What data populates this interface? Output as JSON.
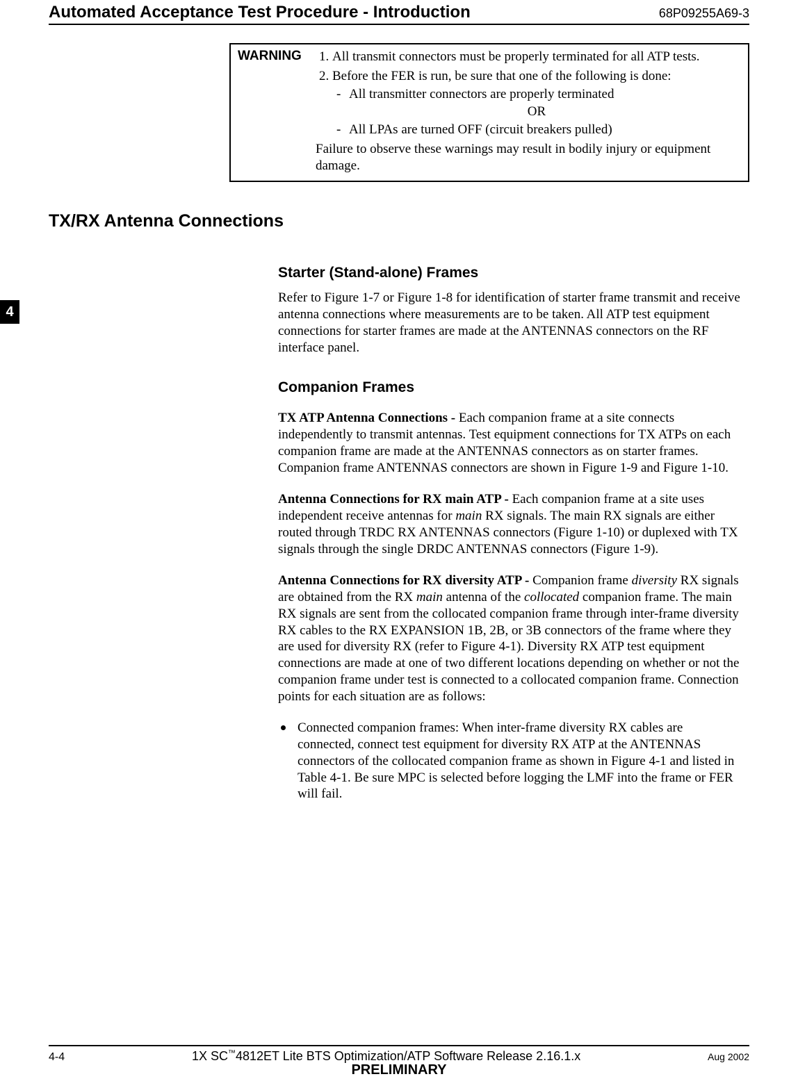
{
  "header": {
    "title": "Automated Acceptance Test Procedure - Introduction",
    "docnum": "68P09255A69-3"
  },
  "side_tab": "4",
  "warning": {
    "label": "WARNING",
    "item1": "All transmit connectors must be properly terminated for all ATP tests.",
    "item2": "Before the FER is run, be sure that one of the following is done:",
    "sub1": "All transmitter connectors are properly terminated",
    "or": "OR",
    "sub2": "All LPAs are turned OFF (circuit breakers pulled)",
    "footer": "Failure to observe these warnings may result in bodily injury or equipment damage."
  },
  "section1": {
    "heading": "TX/RX Antenna Connections"
  },
  "starter": {
    "heading": "Starter (Stand-alone) Frames",
    "body": "Refer to Figure 1-7 or Figure 1-8 for identification of starter frame transmit and receive antenna connections where measurements are to be taken. All ATP test equipment connections for starter frames are made at the ANTENNAS connectors on the RF interface panel."
  },
  "companion": {
    "heading": "Companion Frames",
    "p1_bold": "TX ATP Antenna Connections - ",
    "p1": "Each companion frame at a site connects independently to transmit antennas. Test equipment connections for TX ATPs on each companion frame are made at the ANTENNAS connectors as on starter frames. Companion frame ANTENNAS connectors are shown in Figure 1-9 and Figure 1-10.",
    "p2_bold": "Antenna Connections for RX main ATP - ",
    "p2a": "Each companion frame at a site uses independent receive antennas for ",
    "p2_ital1": "main",
    "p2b": " RX signals. The main RX signals are either routed through TRDC RX ANTENNAS connectors (Figure 1-10) or duplexed with TX signals through the single DRDC ANTENNAS connectors (Figure 1-9).",
    "p3_bold": "Antenna Connections for RX diversity ATP - ",
    "p3a": "Companion frame ",
    "p3_ital1": "diversity",
    "p3b": " RX signals are obtained from the RX ",
    "p3_ital2": "main",
    "p3c": " antenna of the ",
    "p3_ital3": "collocated",
    "p3d": " companion frame. The main RX signals are sent from the collocated companion frame through inter-frame diversity RX cables to the RX EXPANSION 1B, 2B, or 3B connectors of the frame where they are used for diversity RX (refer to Figure 4-1). Diversity RX ATP test equipment connections are made at one of two different locations depending on whether or not the companion frame under test is connected to a collocated companion frame. Connection points for each situation are as follows:",
    "bullet_bold": "Connected companion frames:",
    "bullet_a": " When inter-frame diversity RX cables are connected, connect test equipment for diversity RX ATP at the ANTENNAS connectors of the ",
    "bullet_ital1": "collocated",
    "bullet_b": " companion frame as shown in Figure 4-1 and listed in Table 4-1. Be sure ",
    "bullet_ital2": "MPC",
    "bullet_c": " is selected before logging the LMF into the frame or FER will fail."
  },
  "footer": {
    "page": "4-4",
    "center1": "1X SC",
    "center_tm": "™",
    "center2": "4812ET Lite BTS Optimization/ATP Software Release 2.16.1.x",
    "prelim": "PRELIMINARY",
    "date": "Aug 2002"
  }
}
